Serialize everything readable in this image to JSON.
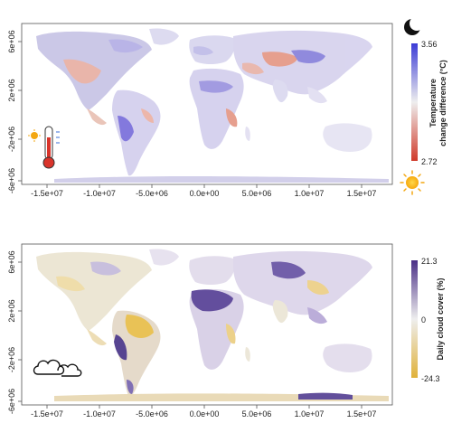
{
  "top_map": {
    "y_ticks": [
      "6e+06",
      "2e+06",
      "-2e+06",
      "-6e+06"
    ],
    "x_ticks": [
      "-1.5e+07",
      "-1.0e+07",
      "-5.0e+06",
      "0.0e+00",
      "5.0e+06",
      "1.0e+07",
      "1.5e+07"
    ],
    "colorbar": {
      "title_line1": "Temperature",
      "title_line2": "change difference (°C)",
      "max_label": "3.56",
      "min_label": "2.72",
      "color_high": "#3b3bd6",
      "color_mid": "#eeeeee",
      "color_low": "#d03a2a"
    },
    "icons": [
      "moon-icon",
      "sun-icon",
      "thermometer-icon"
    ]
  },
  "bottom_map": {
    "y_ticks": [
      "6e+06",
      "2e+06",
      "-2e+06",
      "-6e+06"
    ],
    "x_ticks": [
      "-1.5e+07",
      "-1.0e+07",
      "-5.0e+06",
      "0.0e+00",
      "5.0e+06",
      "1.0e+07",
      "1.5e+07"
    ],
    "colorbar": {
      "title": "Daily cloud cover (%)",
      "max_label": "21.3",
      "mid_label": "0",
      "min_label": "-24.3",
      "color_high": "#4a2f86",
      "color_mid": "#eeeeee",
      "color_low": "#e0b23a"
    },
    "icons": [
      "cloud-icon"
    ]
  }
}
